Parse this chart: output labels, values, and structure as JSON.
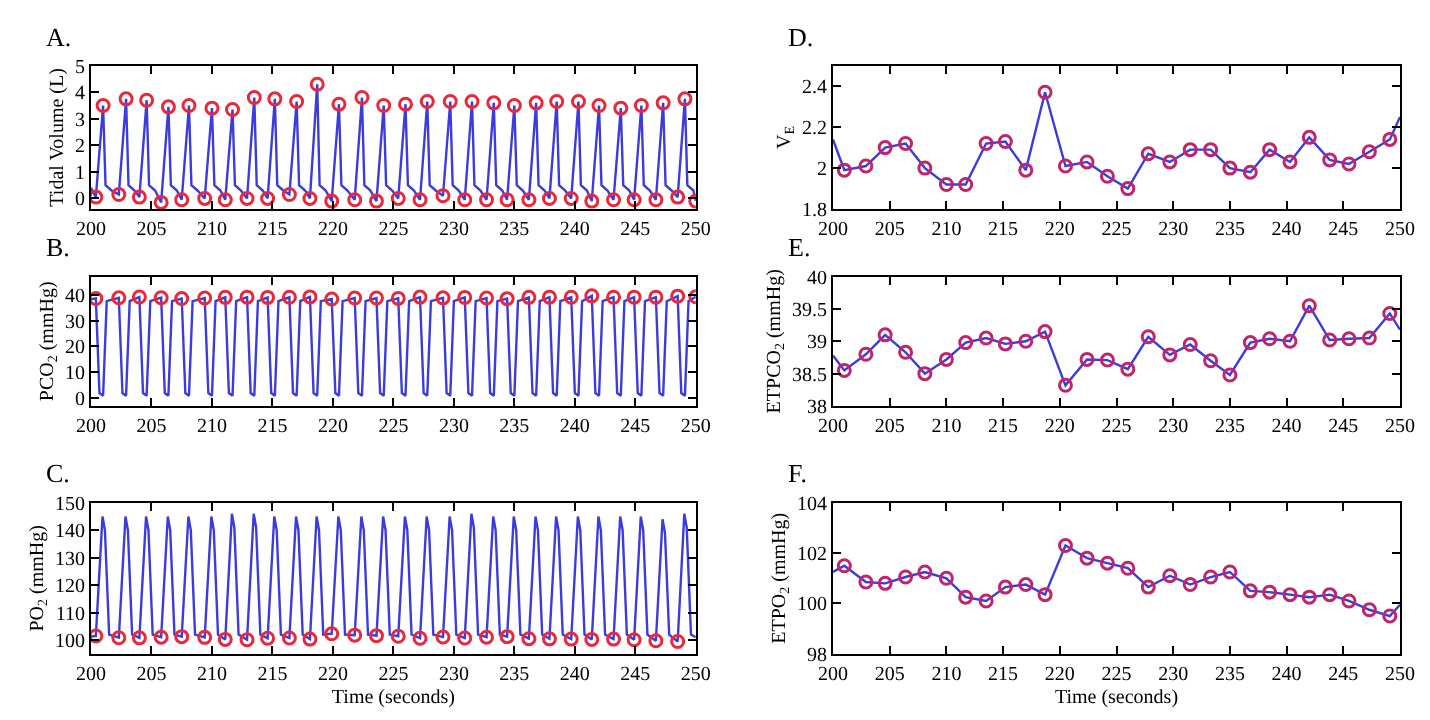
{
  "chart_data": [
    {
      "type": "line",
      "title": "A.",
      "ylabel": "Tidal Volume (L)",
      "xlim": [
        200,
        250
      ],
      "xticks": [
        200,
        205,
        210,
        215,
        220,
        225,
        230,
        235,
        240,
        245,
        250
      ],
      "ylim": [
        -0.4,
        5
      ],
      "yticks": [
        0,
        1,
        2,
        3,
        4,
        5
      ],
      "marker": "circle",
      "series": [
        {
          "marker": "none",
          "color": "#3c3cdc",
          "x": [
            200.0,
            200.4,
            201.0,
            201.2,
            201.7,
            202.3,
            202.9,
            203.1,
            203.6,
            204.0,
            204.6,
            204.8,
            205.3,
            205.8,
            206.4,
            206.6,
            207.1,
            207.5,
            208.1,
            208.3,
            208.8,
            209.4,
            210.0,
            210.2,
            210.7,
            211.1,
            211.7,
            211.9,
            212.4,
            212.9,
            213.5,
            213.7,
            214.2,
            214.6,
            215.2,
            215.4,
            215.9,
            216.4,
            217.0,
            217.2,
            217.7,
            218.1,
            218.7,
            218.9,
            219.4,
            219.9,
            220.5,
            220.7,
            221.2,
            221.8,
            222.4,
            222.6,
            223.1,
            223.6,
            224.2,
            224.4,
            224.9,
            225.4,
            226.0,
            226.2,
            226.7,
            227.2,
            227.8,
            228.0,
            228.5,
            229.1,
            229.7,
            229.9,
            230.4,
            230.9,
            231.5,
            231.7,
            232.2,
            232.7,
            233.3,
            233.5,
            234.0,
            234.4,
            235.0,
            235.2,
            235.7,
            236.2,
            236.8,
            237.0,
            237.5,
            237.9,
            238.5,
            238.7,
            239.2,
            239.7,
            240.3,
            240.5,
            241.0,
            241.4,
            242.0,
            242.2,
            242.7,
            243.2,
            243.8,
            244.0,
            244.5,
            244.9,
            245.5,
            245.7,
            246.2,
            246.7,
            247.3,
            247.5,
            248.0,
            248.5,
            249.1,
            249.3,
            249.8,
            250.0
          ],
          "values": [
            0.4,
            0.05,
            3.5,
            0.5,
            0.3,
            0.15,
            3.75,
            0.5,
            0.3,
            0.05,
            3.7,
            0.5,
            0.3,
            -0.15,
            3.45,
            0.5,
            0.3,
            -0.05,
            3.5,
            0.5,
            0.3,
            0.0,
            3.4,
            0.5,
            0.3,
            -0.05,
            3.35,
            0.5,
            0.3,
            0.0,
            3.8,
            0.5,
            0.3,
            0.0,
            3.75,
            0.5,
            0.3,
            0.15,
            3.65,
            0.5,
            0.3,
            0.0,
            4.3,
            0.5,
            0.3,
            -0.1,
            3.55,
            0.5,
            0.3,
            -0.05,
            3.8,
            0.5,
            0.3,
            -0.1,
            3.5,
            0.5,
            0.3,
            0.0,
            3.55,
            0.5,
            0.3,
            -0.05,
            3.65,
            0.5,
            0.3,
            0.1,
            3.65,
            0.5,
            0.3,
            -0.05,
            3.65,
            0.5,
            0.3,
            -0.05,
            3.6,
            0.5,
            0.3,
            -0.05,
            3.5,
            0.5,
            0.3,
            -0.05,
            3.6,
            0.5,
            0.3,
            0.0,
            3.65,
            0.5,
            0.3,
            0.0,
            3.65,
            0.5,
            0.3,
            -0.1,
            3.5,
            0.5,
            0.3,
            -0.05,
            3.4,
            0.5,
            0.3,
            -0.05,
            3.5,
            0.5,
            0.3,
            -0.05,
            3.6,
            0.5,
            0.3,
            0.05,
            3.75,
            0.5,
            0.3,
            -0.1
          ]
        },
        {
          "type": "scatter",
          "color": "#e8283c",
          "x": [
            201.0,
            202.9,
            204.6,
            206.4,
            208.1,
            210.0,
            211.7,
            213.5,
            215.2,
            217.0,
            218.7,
            220.5,
            222.4,
            224.2,
            226.0,
            227.8,
            229.7,
            231.5,
            233.3,
            235.0,
            236.8,
            238.5,
            240.3,
            242.0,
            243.8,
            245.5,
            247.3,
            249.1
          ],
          "values": [
            3.5,
            3.75,
            3.7,
            3.45,
            3.5,
            3.4,
            3.35,
            3.8,
            3.75,
            3.65,
            4.3,
            3.55,
            3.8,
            3.5,
            3.55,
            3.65,
            3.65,
            3.65,
            3.6,
            3.5,
            3.6,
            3.65,
            3.65,
            3.5,
            3.4,
            3.5,
            3.6,
            3.75
          ]
        },
        {
          "type": "scatter",
          "color": "#e8283c",
          "x": [
            200.4,
            202.3,
            204.0,
            205.8,
            207.5,
            209.4,
            211.1,
            212.9,
            214.6,
            216.4,
            218.1,
            219.9,
            221.8,
            223.6,
            225.4,
            227.2,
            229.1,
            230.9,
            232.7,
            234.4,
            236.2,
            237.9,
            239.7,
            241.4,
            243.2,
            244.9,
            246.7,
            248.5,
            250.0
          ],
          "values": [
            0.05,
            0.15,
            0.05,
            -0.15,
            -0.05,
            0.0,
            -0.05,
            0.0,
            0.0,
            0.15,
            0.0,
            -0.1,
            -0.05,
            -0.1,
            0.0,
            -0.05,
            0.1,
            -0.05,
            -0.05,
            -0.05,
            -0.05,
            0.0,
            0.0,
            -0.1,
            -0.05,
            -0.05,
            -0.05,
            0.05,
            -0.1
          ]
        }
      ]
    },
    {
      "type": "line",
      "title": "B.",
      "ylabel": "PCO$_{2}$ (mmHg)",
      "xlim": [
        200,
        250
      ],
      "xticks": [
        200,
        205,
        210,
        215,
        220,
        225,
        230,
        235,
        240,
        245,
        250
      ],
      "ylim": [
        -3,
        47
      ],
      "yticks": [
        0,
        10,
        20,
        30,
        40
      ],
      "marker": "circle",
      "series": [
        {
          "marker": "none",
          "color": "#3c3cdc",
          "x": [
            200.0,
            200.4,
            200.7,
            201.0,
            201.3,
            202.3,
            202.6,
            202.9,
            203.2,
            204.0,
            204.3,
            204.6,
            204.9,
            205.8,
            206.1,
            206.4,
            206.7,
            207.5,
            207.8,
            208.1,
            208.4,
            209.4,
            209.7,
            210.0,
            210.3,
            211.1,
            211.4,
            211.7,
            212.0,
            212.9,
            213.2,
            213.5,
            213.8,
            214.6,
            214.9,
            215.2,
            215.5,
            216.4,
            216.7,
            217.0,
            217.3,
            218.1,
            218.4,
            218.7,
            219.0,
            219.9,
            220.2,
            220.5,
            220.8,
            221.8,
            222.1,
            222.4,
            222.7,
            223.6,
            223.9,
            224.2,
            224.5,
            225.4,
            225.7,
            226.0,
            226.3,
            227.2,
            227.5,
            227.8,
            228.1,
            229.1,
            229.4,
            229.7,
            230.0,
            230.9,
            231.2,
            231.5,
            231.8,
            232.7,
            233.0,
            233.3,
            233.6,
            234.4,
            234.7,
            235.0,
            235.3,
            236.2,
            236.5,
            236.8,
            237.1,
            237.9,
            238.2,
            238.5,
            238.8,
            239.7,
            240.0,
            240.3,
            240.6,
            241.4,
            241.7,
            242.0,
            242.3,
            243.2,
            243.5,
            243.8,
            244.1,
            244.9,
            245.2,
            245.5,
            245.8,
            246.7,
            247.0,
            247.3,
            247.6,
            248.5,
            248.8,
            249.1,
            249.4,
            250.0
          ],
          "values": [
            38.3,
            38.55,
            2,
            1,
            37.5,
            38.8,
            2,
            1,
            37.5,
            39.1,
            2,
            1,
            37.5,
            38.83,
            2,
            1,
            37.5,
            38.5,
            2,
            1,
            37.5,
            38.72,
            2,
            1,
            37.5,
            38.98,
            2,
            1,
            37.5,
            39.05,
            2,
            1,
            37.5,
            38.96,
            2,
            1,
            37.5,
            39.0,
            2,
            1,
            37.5,
            39.15,
            2,
            1,
            37.5,
            38.32,
            2,
            1,
            37.5,
            38.72,
            2,
            1,
            37.5,
            38.71,
            2,
            1,
            37.5,
            38.57,
            2,
            1,
            37.5,
            39.07,
            2,
            1,
            37.5,
            38.79,
            2,
            1,
            37.5,
            38.95,
            2,
            1,
            37.5,
            38.7,
            2,
            1,
            37.5,
            38.48,
            2,
            1,
            37.5,
            38.98,
            2,
            1,
            37.5,
            39.04,
            2,
            1,
            37.5,
            39.0,
            2,
            1,
            37.5,
            39.55,
            2,
            1,
            37.5,
            39.02,
            2,
            1,
            37.5,
            39.04,
            2,
            1,
            37.5,
            39.05,
            2,
            1,
            37.5,
            39.43,
            2,
            1,
            37.5,
            39.18
          ]
        },
        {
          "type": "scatter",
          "color": "#e8283c",
          "x": [
            200.4,
            202.3,
            204.0,
            205.8,
            207.5,
            209.4,
            211.1,
            212.9,
            214.6,
            216.4,
            218.1,
            219.9,
            221.8,
            223.6,
            225.4,
            227.2,
            229.1,
            230.9,
            232.7,
            234.4,
            236.2,
            237.9,
            239.7,
            241.4,
            243.2,
            244.9,
            246.7,
            248.5,
            250.0
          ],
          "values": [
            38.55,
            38.8,
            39.1,
            38.83,
            38.5,
            38.72,
            38.98,
            39.05,
            38.96,
            39.0,
            39.15,
            38.32,
            38.72,
            38.71,
            38.57,
            39.07,
            38.79,
            38.95,
            38.7,
            38.48,
            38.98,
            39.04,
            39.0,
            39.55,
            39.02,
            39.04,
            39.05,
            39.43,
            39.18
          ]
        }
      ]
    },
    {
      "type": "line",
      "title": "C.",
      "xlabel": "Time (seconds)",
      "ylabel": "PO$_{2}$ (mmHg)",
      "xlim": [
        200,
        250
      ],
      "xticks": [
        200,
        205,
        210,
        215,
        220,
        225,
        230,
        235,
        240,
        245,
        250
      ],
      "ylim": [
        95,
        150
      ],
      "yticks": [
        100,
        110,
        120,
        130,
        140,
        150
      ],
      "marker": "circle",
      "series": [
        {
          "marker": "none",
          "color": "#3c3cdc",
          "x": [
            200.0,
            200.4,
            200.95,
            201.15,
            201.5,
            202.3,
            202.85,
            203.05,
            203.4,
            204.0,
            204.55,
            204.75,
            205.1,
            205.8,
            206.35,
            206.55,
            206.9,
            207.5,
            208.05,
            208.25,
            208.6,
            209.4,
            209.95,
            210.15,
            210.5,
            211.1,
            211.65,
            211.85,
            212.2,
            212.9,
            213.45,
            213.65,
            214.0,
            214.6,
            215.15,
            215.35,
            215.7,
            216.4,
            216.95,
            217.15,
            217.5,
            218.1,
            218.65,
            218.85,
            219.2,
            219.9,
            220.45,
            220.65,
            221.0,
            221.8,
            222.35,
            222.55,
            222.9,
            223.6,
            224.15,
            224.35,
            224.7,
            225.4,
            225.95,
            226.15,
            226.5,
            227.2,
            227.75,
            227.95,
            228.3,
            229.1,
            229.65,
            229.85,
            230.2,
            230.9,
            231.45,
            231.65,
            232.0,
            232.7,
            233.25,
            233.45,
            233.8,
            234.4,
            234.95,
            235.15,
            235.5,
            236.2,
            236.75,
            236.95,
            237.3,
            237.9,
            238.45,
            238.65,
            239.0,
            239.7,
            240.25,
            240.45,
            240.8,
            241.4,
            241.95,
            242.15,
            242.5,
            243.2,
            243.75,
            243.95,
            244.3,
            244.9,
            245.45,
            245.65,
            246.0,
            246.7,
            247.25,
            247.45,
            247.8,
            248.5,
            249.05,
            249.25,
            249.6,
            250.0
          ],
          "values": [
            101.3,
            101.5,
            145,
            140,
            102,
            100.85,
            145,
            140,
            102,
            100.8,
            145,
            140,
            102,
            101.05,
            145,
            140,
            102,
            101.25,
            145,
            140,
            102,
            101.0,
            145,
            140,
            102,
            100.25,
            146,
            141,
            102,
            100.1,
            146,
            141,
            102,
            100.65,
            145,
            140,
            102,
            100.75,
            145,
            140,
            102,
            100.35,
            145,
            140,
            102,
            102.3,
            145,
            140,
            102,
            101.8,
            145,
            140,
            102,
            101.6,
            145,
            140,
            102,
            101.4,
            145,
            140,
            102,
            100.65,
            145,
            140,
            102,
            101.1,
            145,
            140,
            102,
            100.75,
            146,
            141,
            102,
            101.05,
            145,
            140,
            102,
            101.25,
            145,
            140,
            102,
            100.5,
            145,
            140,
            102,
            100.45,
            145,
            140,
            102,
            100.35,
            145,
            140,
            102,
            100.25,
            145,
            140,
            102,
            100.35,
            145,
            140,
            102,
            100.1,
            145,
            140,
            102,
            99.75,
            144,
            139,
            102,
            99.5,
            146,
            141,
            102,
            101.0
          ]
        },
        {
          "type": "scatter",
          "color": "#e8283c",
          "x": [
            200.4,
            202.3,
            204.0,
            205.8,
            207.5,
            209.4,
            211.1,
            212.9,
            214.6,
            216.4,
            218.1,
            219.9,
            221.8,
            223.6,
            225.4,
            227.2,
            229.1,
            230.9,
            232.7,
            234.4,
            236.2,
            237.9,
            239.7,
            241.4,
            243.2,
            244.9,
            246.7,
            248.5
          ],
          "values": [
            101.5,
            100.85,
            100.8,
            101.05,
            101.25,
            101.0,
            100.25,
            100.1,
            100.65,
            100.75,
            100.35,
            102.3,
            101.8,
            101.6,
            101.4,
            100.65,
            101.1,
            100.75,
            101.05,
            101.25,
            100.5,
            100.45,
            100.35,
            100.25,
            100.35,
            100.1,
            99.75,
            99.5
          ]
        }
      ]
    },
    {
      "type": "line",
      "title": "D.",
      "ylabel": "V$_{E}$",
      "xlim": [
        200,
        250
      ],
      "xticks": [
        200,
        205,
        210,
        215,
        220,
        225,
        230,
        235,
        240,
        245,
        250
      ],
      "ylim": [
        1.8,
        2.5
      ],
      "yticks": [
        1.8,
        2,
        2.2,
        2.4
      ],
      "marker": "circle",
      "series": [
        {
          "marker": "none",
          "color": "#3c3cdc",
          "x": [
            200.0,
            201.0,
            202.9,
            204.6,
            206.4,
            208.1,
            210.0,
            211.7,
            213.5,
            215.2,
            217.0,
            218.7,
            220.5,
            222.4,
            224.2,
            226.0,
            227.8,
            229.7,
            231.5,
            233.3,
            235.0,
            236.8,
            238.5,
            240.3,
            242.0,
            243.8,
            245.5,
            247.3,
            249.1,
            250.0
          ],
          "values": [
            2.14,
            1.99,
            2.01,
            2.1,
            2.12,
            2.0,
            1.92,
            1.92,
            2.12,
            2.13,
            1.99,
            2.37,
            2.01,
            2.03,
            1.96,
            1.9,
            2.07,
            2.03,
            2.09,
            2.09,
            2.0,
            1.98,
            2.09,
            2.03,
            2.15,
            2.04,
            2.02,
            2.08,
            2.14,
            2.25
          ]
        },
        {
          "type": "scatter",
          "color": "#c0246e",
          "x": [
            201.0,
            202.9,
            204.6,
            206.4,
            208.1,
            210.0,
            211.7,
            213.5,
            215.2,
            217.0,
            218.7,
            220.5,
            222.4,
            224.2,
            226.0,
            227.8,
            229.7,
            231.5,
            233.3,
            235.0,
            236.8,
            238.5,
            240.3,
            242.0,
            243.8,
            245.5,
            247.3,
            249.1
          ],
          "values": [
            1.99,
            2.01,
            2.1,
            2.12,
            2.0,
            1.92,
            1.92,
            2.12,
            2.13,
            1.99,
            2.37,
            2.01,
            2.03,
            1.96,
            1.9,
            2.07,
            2.03,
            2.09,
            2.09,
            2.0,
            1.98,
            2.09,
            2.03,
            2.15,
            2.04,
            2.02,
            2.08,
            2.14
          ]
        }
      ]
    },
    {
      "type": "line",
      "title": "E.",
      "ylabel": "ETPCO$_{2}$ (mmHg)",
      "xlim": [
        200,
        250
      ],
      "xticks": [
        200,
        205,
        210,
        215,
        220,
        225,
        230,
        235,
        240,
        245,
        250
      ],
      "ylim": [
        38,
        40
      ],
      "yticks": [
        38,
        38.5,
        39,
        39.5,
        40
      ],
      "marker": "circle",
      "series": [
        {
          "marker": "none",
          "color": "#3c3cdc",
          "x": [
            200.0,
            201.0,
            202.9,
            204.6,
            206.4,
            208.1,
            210.0,
            211.7,
            213.5,
            215.2,
            217.0,
            218.7,
            220.5,
            222.4,
            224.2,
            226.0,
            227.8,
            229.7,
            231.5,
            233.3,
            235.0,
            236.8,
            238.5,
            240.3,
            242.0,
            243.8,
            245.5,
            247.3,
            249.1,
            250.0
          ],
          "values": [
            38.78,
            38.55,
            38.8,
            39.1,
            38.83,
            38.5,
            38.72,
            38.98,
            39.05,
            38.96,
            39.0,
            39.15,
            38.32,
            38.72,
            38.71,
            38.57,
            39.07,
            38.79,
            38.95,
            38.7,
            38.48,
            38.98,
            39.04,
            39.0,
            39.55,
            39.02,
            39.04,
            39.05,
            39.43,
            39.18
          ]
        },
        {
          "type": "scatter",
          "color": "#c0246e",
          "x": [
            201.0,
            202.9,
            204.6,
            206.4,
            208.1,
            210.0,
            211.7,
            213.5,
            215.2,
            217.0,
            218.7,
            220.5,
            222.4,
            224.2,
            226.0,
            227.8,
            229.7,
            231.5,
            233.3,
            235.0,
            236.8,
            238.5,
            240.3,
            242.0,
            243.8,
            245.5,
            247.3,
            249.1
          ],
          "values": [
            38.55,
            38.8,
            39.1,
            38.83,
            38.5,
            38.72,
            38.98,
            39.05,
            38.96,
            39.0,
            39.15,
            38.32,
            38.72,
            38.71,
            38.57,
            39.07,
            38.79,
            38.95,
            38.7,
            38.48,
            38.98,
            39.04,
            39.0,
            39.55,
            39.02,
            39.04,
            39.05,
            39.43
          ]
        }
      ]
    },
    {
      "type": "line",
      "title": "F.",
      "xlabel": "Time (seconds)",
      "ylabel": "ETPO$_{2}$ (mmHg)",
      "xlim": [
        200,
        250
      ],
      "xticks": [
        200,
        205,
        210,
        215,
        220,
        225,
        230,
        235,
        240,
        245,
        250
      ],
      "ylim": [
        98,
        104
      ],
      "yticks": [
        98,
        100,
        102,
        104
      ],
      "marker": "circle",
      "series": [
        {
          "marker": "none",
          "color": "#3c3cdc",
          "x": [
            200.0,
            201.0,
            202.9,
            204.6,
            206.4,
            208.1,
            210.0,
            211.7,
            213.5,
            215.2,
            217.0,
            218.7,
            220.5,
            222.4,
            224.2,
            226.0,
            227.8,
            229.7,
            231.5,
            233.3,
            235.0,
            236.8,
            238.5,
            240.3,
            242.0,
            243.8,
            245.5,
            247.3,
            249.1,
            250.0
          ],
          "values": [
            101.25,
            101.5,
            100.85,
            100.8,
            101.05,
            101.25,
            101.0,
            100.25,
            100.1,
            100.65,
            100.75,
            100.35,
            102.3,
            101.8,
            101.6,
            101.4,
            100.65,
            101.1,
            100.75,
            101.05,
            101.25,
            100.5,
            100.45,
            100.35,
            100.25,
            100.35,
            100.1,
            99.75,
            99.5,
            99.95
          ]
        },
        {
          "type": "scatter",
          "color": "#c0246e",
          "x": [
            201.0,
            202.9,
            204.6,
            206.4,
            208.1,
            210.0,
            211.7,
            213.5,
            215.2,
            217.0,
            218.7,
            220.5,
            222.4,
            224.2,
            226.0,
            227.8,
            229.7,
            231.5,
            233.3,
            235.0,
            236.8,
            238.5,
            240.3,
            242.0,
            243.8,
            245.5,
            247.3,
            249.1
          ],
          "values": [
            101.5,
            100.85,
            100.8,
            101.05,
            101.25,
            101.0,
            100.25,
            100.1,
            100.65,
            100.75,
            100.35,
            102.3,
            101.8,
            101.6,
            101.4,
            100.65,
            101.1,
            100.75,
            101.05,
            101.25,
            100.5,
            100.45,
            100.35,
            100.25,
            100.35,
            100.1,
            99.75,
            99.5
          ]
        }
      ]
    }
  ]
}
